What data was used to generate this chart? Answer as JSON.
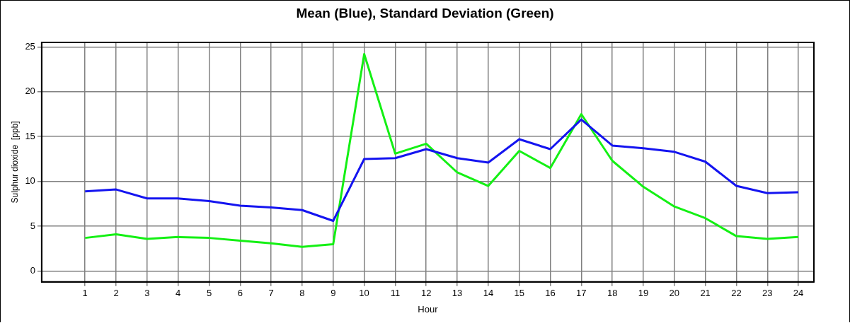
{
  "chart_data": {
    "type": "line",
    "title": "Mean (Blue), Standard Deviation (Green)",
    "xlabel": "Hour",
    "ylabel": "Sulphur dioxide  [ppb]",
    "x": [
      1,
      2,
      3,
      4,
      5,
      6,
      7,
      8,
      9,
      10,
      11,
      12,
      13,
      14,
      15,
      16,
      17,
      18,
      19,
      20,
      21,
      22,
      23,
      24
    ],
    "series": [
      {
        "color": "#1414f0",
        "values": [
          8.9,
          9.1,
          8.1,
          8.1,
          7.8,
          7.3,
          7.1,
          6.8,
          5.6,
          12.5,
          12.6,
          13.6,
          12.6,
          12.1,
          14.7,
          13.6,
          16.9,
          14.0,
          13.7,
          13.3,
          12.2,
          9.5,
          8.7,
          8.8
        ]
      },
      {
        "color": "#14f014",
        "values": [
          3.7,
          4.1,
          3.6,
          3.8,
          3.7,
          3.4,
          3.1,
          2.7,
          3.0,
          24.2,
          13.1,
          14.2,
          11.0,
          9.5,
          13.4,
          11.5,
          17.5,
          12.3,
          9.4,
          7.2,
          5.9,
          3.9,
          3.6,
          3.8
        ]
      }
    ],
    "xlim": [
      -0.4,
      24.5
    ],
    "xticks": [
      1,
      2,
      3,
      4,
      5,
      6,
      7,
      8,
      9,
      10,
      11,
      12,
      13,
      14,
      15,
      16,
      17,
      18,
      19,
      20,
      21,
      22,
      23,
      24
    ],
    "ylim": [
      -1.2,
      25.5
    ],
    "yticks": [
      0,
      5,
      10,
      15,
      20,
      25
    ],
    "grid": true,
    "legend": false,
    "marker": "none",
    "line_style": "solid"
  }
}
